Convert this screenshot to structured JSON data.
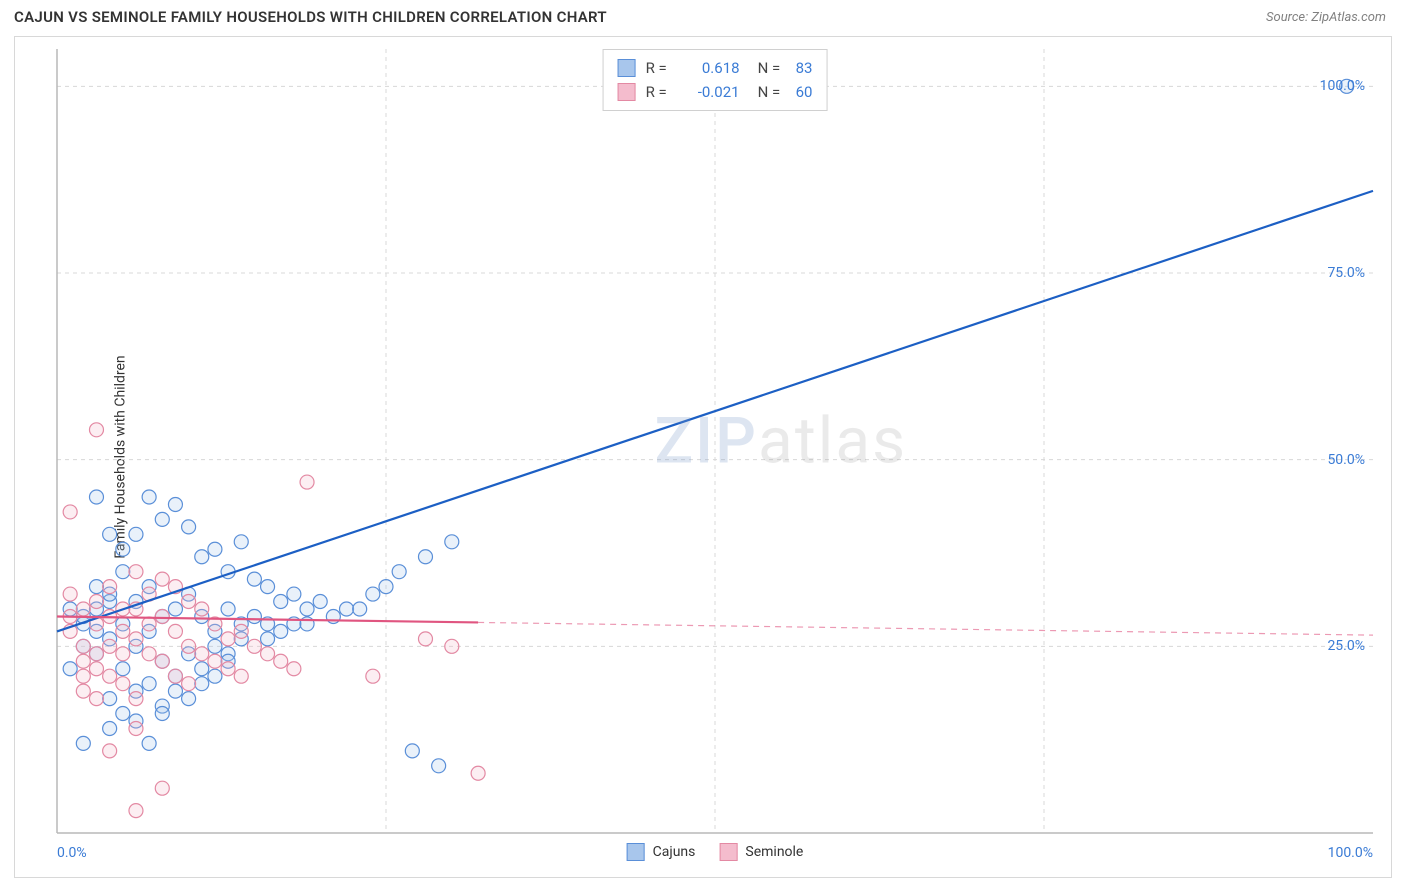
{
  "header": {
    "title": "CAJUN VS SEMINOLE FAMILY HOUSEHOLDS WITH CHILDREN CORRELATION CHART",
    "source": "Source: ZipAtlas.com"
  },
  "chart": {
    "type": "scatter",
    "ylabel": "Family Households with Children",
    "xlim": [
      0,
      100
    ],
    "ylim": [
      0,
      105
    ],
    "background_color": "#ffffff",
    "border_color": "#d8d8d8",
    "grid_color_dashed": "#d8d8d8",
    "axis_color": "#b8b8b8",
    "tick_label_color": "#3a7bd5",
    "yticks": [
      {
        "value": 25,
        "label": "25.0%"
      },
      {
        "value": 50,
        "label": "50.0%"
      },
      {
        "value": 75,
        "label": "75.0%"
      },
      {
        "value": 100,
        "label": "100.0%"
      }
    ],
    "xticks": [
      {
        "value": 0,
        "label": "0.0%",
        "align": "left"
      },
      {
        "value": 100,
        "label": "100.0%",
        "align": "right"
      }
    ],
    "x_gridlines": [
      25,
      50,
      75
    ],
    "watermark": {
      "zip": "ZIP",
      "atlas": "atlas"
    },
    "marker_radius": 7,
    "marker_stroke_width": 1.2,
    "marker_fill_opacity": 0.25,
    "line_width": 2.2,
    "series": [
      {
        "name": "Cajuns",
        "color_stroke": "#5a8fd8",
        "color_fill": "#a8c6ec",
        "line_color": "#1c5fc4",
        "r": "0.618",
        "n": "83",
        "regression": {
          "x1": 0,
          "y1": 27,
          "x2": 100,
          "y2": 86,
          "solid_until_x": 100
        },
        "points": [
          [
            1,
            30
          ],
          [
            2,
            28
          ],
          [
            3,
            33
          ],
          [
            2,
            25
          ],
          [
            4,
            31
          ],
          [
            3,
            27
          ],
          [
            5,
            35
          ],
          [
            1,
            22
          ],
          [
            2,
            29
          ],
          [
            3,
            30
          ],
          [
            6,
            40
          ],
          [
            4,
            32
          ],
          [
            7,
            45
          ],
          [
            5,
            28
          ],
          [
            8,
            42
          ],
          [
            9,
            44
          ],
          [
            3,
            24
          ],
          [
            4,
            26
          ],
          [
            6,
            31
          ],
          [
            7,
            33
          ],
          [
            10,
            41
          ],
          [
            11,
            37
          ],
          [
            8,
            29
          ],
          [
            5,
            22
          ],
          [
            6,
            25
          ],
          [
            12,
            38
          ],
          [
            13,
            35
          ],
          [
            7,
            27
          ],
          [
            9,
            30
          ],
          [
            10,
            32
          ],
          [
            14,
            39
          ],
          [
            8,
            23
          ],
          [
            11,
            29
          ],
          [
            15,
            34
          ],
          [
            12,
            27
          ],
          [
            9,
            21
          ],
          [
            6,
            19
          ],
          [
            10,
            24
          ],
          [
            13,
            30
          ],
          [
            16,
            33
          ],
          [
            4,
            18
          ],
          [
            11,
            22
          ],
          [
            14,
            28
          ],
          [
            7,
            20
          ],
          [
            17,
            31
          ],
          [
            8,
            17
          ],
          [
            12,
            25
          ],
          [
            15,
            29
          ],
          [
            18,
            32
          ],
          [
            9,
            19
          ],
          [
            5,
            16
          ],
          [
            13,
            24
          ],
          [
            16,
            28
          ],
          [
            19,
            30
          ],
          [
            10,
            18
          ],
          [
            14,
            26
          ],
          [
            17,
            27
          ],
          [
            20,
            31
          ],
          [
            30,
            39
          ],
          [
            11,
            20
          ],
          [
            22,
            30
          ],
          [
            12,
            21
          ],
          [
            24,
            32
          ],
          [
            18,
            28
          ],
          [
            13,
            23
          ],
          [
            26,
            35
          ],
          [
            28,
            37
          ],
          [
            4,
            14
          ],
          [
            16,
            26
          ],
          [
            2,
            12
          ],
          [
            19,
            28
          ],
          [
            21,
            29
          ],
          [
            6,
            15
          ],
          [
            23,
            30
          ],
          [
            8,
            16
          ],
          [
            25,
            33
          ],
          [
            7,
            12
          ],
          [
            27,
            11
          ],
          [
            29,
            9
          ],
          [
            98,
            100
          ],
          [
            3,
            45
          ],
          [
            4,
            40
          ],
          [
            5,
            38
          ]
        ]
      },
      {
        "name": "Seminole",
        "color_stroke": "#e389a3",
        "color_fill": "#f4bccd",
        "line_color": "#e05580",
        "r": "-0.021",
        "n": "60",
        "regression": {
          "x1": 0,
          "y1": 29,
          "x2": 100,
          "y2": 26.5,
          "solid_until_x": 32
        },
        "points": [
          [
            1,
            29
          ],
          [
            2,
            30
          ],
          [
            1,
            27
          ],
          [
            3,
            31
          ],
          [
            2,
            25
          ],
          [
            4,
            33
          ],
          [
            3,
            28
          ],
          [
            5,
            30
          ],
          [
            2,
            23
          ],
          [
            1,
            32
          ],
          [
            6,
            35
          ],
          [
            4,
            29
          ],
          [
            3,
            24
          ],
          [
            7,
            32
          ],
          [
            5,
            27
          ],
          [
            2,
            21
          ],
          [
            8,
            34
          ],
          [
            6,
            30
          ],
          [
            4,
            25
          ],
          [
            3,
            22
          ],
          [
            9,
            33
          ],
          [
            7,
            28
          ],
          [
            5,
            24
          ],
          [
            2,
            19
          ],
          [
            10,
            31
          ],
          [
            8,
            29
          ],
          [
            6,
            26
          ],
          [
            4,
            21
          ],
          [
            3,
            18
          ],
          [
            11,
            30
          ],
          [
            9,
            27
          ],
          [
            7,
            24
          ],
          [
            5,
            20
          ],
          [
            12,
            28
          ],
          [
            10,
            25
          ],
          [
            8,
            23
          ],
          [
            6,
            18
          ],
          [
            13,
            26
          ],
          [
            11,
            24
          ],
          [
            9,
            21
          ],
          [
            14,
            27
          ],
          [
            12,
            23
          ],
          [
            10,
            20
          ],
          [
            15,
            25
          ],
          [
            13,
            22
          ],
          [
            16,
            24
          ],
          [
            14,
            21
          ],
          [
            17,
            23
          ],
          [
            18,
            22
          ],
          [
            3,
            54
          ],
          [
            1,
            43
          ],
          [
            19,
            47
          ],
          [
            24,
            21
          ],
          [
            6,
            14
          ],
          [
            4,
            11
          ],
          [
            8,
            6
          ],
          [
            32,
            8
          ],
          [
            28,
            26
          ],
          [
            30,
            25
          ],
          [
            6,
            3
          ]
        ]
      }
    ],
    "stats_box": {
      "r_label": "R =",
      "n_label": "N ="
    },
    "legend_label_cajuns": "Cajuns",
    "legend_label_seminole": "Seminole"
  }
}
